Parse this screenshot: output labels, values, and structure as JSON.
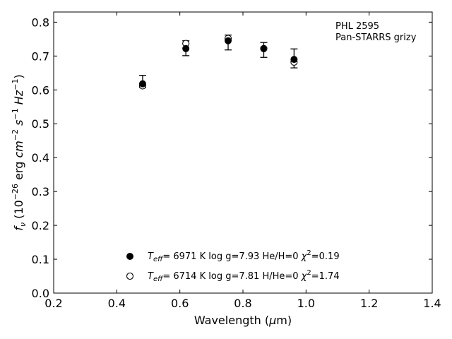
{
  "chart_data": {
    "type": "scatter",
    "title": "",
    "xlabel": "Wavelength (μm)",
    "ylabel": "f_ν (10^-26 erg cm^-2 s^-1 Hz^-1)",
    "xlim": [
      0.2,
      1.4
    ],
    "ylim": [
      0.0,
      0.83
    ],
    "xticks": [
      0.2,
      0.4,
      0.6,
      0.8,
      1.0,
      1.2,
      1.4
    ],
    "yticks": [
      0.0,
      0.1,
      0.2,
      0.3,
      0.4,
      0.5,
      0.6,
      0.7,
      0.8
    ],
    "xtick_labels": [
      "0.2",
      "0.4",
      "0.6",
      "0.8",
      "1.0",
      "1.2",
      "1.4"
    ],
    "ytick_labels": [
      "0.0",
      "0.1",
      "0.2",
      "0.3",
      "0.4",
      "0.5",
      "0.6",
      "0.7",
      "0.8"
    ],
    "grid": false,
    "annotation": [
      "PHL 2595",
      "Pan-STARRS grizy"
    ],
    "observed": {
      "x": [
        0.482,
        0.619,
        0.753,
        0.866,
        0.962
      ],
      "y": [
        0.625,
        0.723,
        0.74,
        0.718,
        0.693
      ],
      "err": [
        0.018,
        0.022,
        0.022,
        0.022,
        0.028
      ]
    },
    "series": [
      {
        "marker": "filled-circle",
        "legend": {
          "teff": "6971 K",
          "logg": "log g=7.93",
          "comp": "He/H=0",
          "chi2": "=0.19"
        },
        "x": [
          0.482,
          0.619,
          0.753,
          0.866,
          0.962
        ],
        "y": [
          0.618,
          0.722,
          0.745,
          0.722,
          0.69
        ]
      },
      {
        "marker": "open-circle",
        "legend": {
          "teff": "6714 K",
          "logg": "log g=7.81",
          "comp": "H/He=0",
          "chi2": "=1.74"
        },
        "x": [
          0.482,
          0.619,
          0.753,
          0.866,
          0.962
        ],
        "y": [
          0.612,
          0.737,
          0.752,
          0.722,
          0.682
        ]
      }
    ],
    "legend_placement": "bottom-center"
  }
}
